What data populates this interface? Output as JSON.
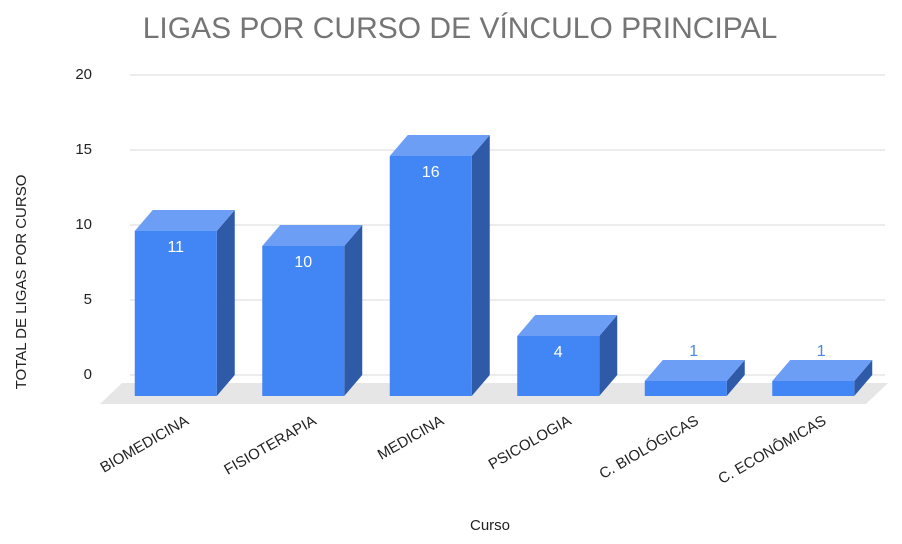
{
  "chart_data": {
    "type": "bar3d",
    "title": "LIGAS POR CURSO DE VÍNCULO PRINCIPAL",
    "x_label": "Curso",
    "y_label": "TOTAL DE LIGAS POR CURSO",
    "categories": [
      "BIOMEDICINA",
      "FISIOTERAPIA",
      "MEDICINA",
      "PSICOLOGIA",
      "C. BIOLÓGICAS",
      "C. ECONÔMICAS"
    ],
    "values": [
      11,
      10,
      16,
      4,
      1,
      1
    ],
    "color": "#4285f4",
    "ylim": [
      0,
      20
    ],
    "yticks": [
      0,
      5,
      10,
      15,
      20
    ],
    "grid": true
  }
}
